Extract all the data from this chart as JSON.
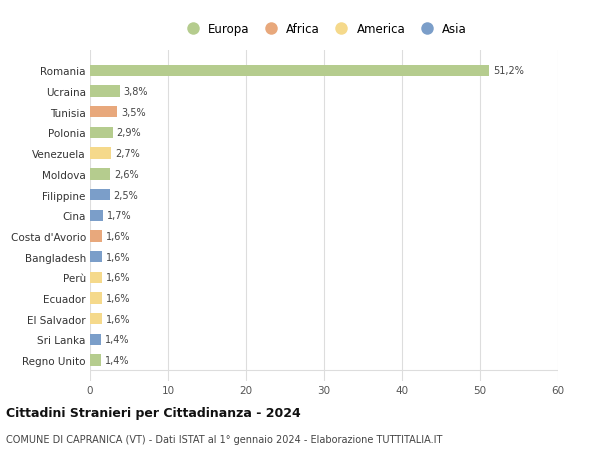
{
  "countries": [
    "Romania",
    "Ucraina",
    "Tunisia",
    "Polonia",
    "Venezuela",
    "Moldova",
    "Filippine",
    "Cina",
    "Costa d'Avorio",
    "Bangladesh",
    "Perù",
    "Ecuador",
    "El Salvador",
    "Sri Lanka",
    "Regno Unito"
  ],
  "values": [
    51.2,
    3.8,
    3.5,
    2.9,
    2.7,
    2.6,
    2.5,
    1.7,
    1.6,
    1.6,
    1.6,
    1.6,
    1.6,
    1.4,
    1.4
  ],
  "labels": [
    "51,2%",
    "3,8%",
    "3,5%",
    "2,9%",
    "2,7%",
    "2,6%",
    "2,5%",
    "1,7%",
    "1,6%",
    "1,6%",
    "1,6%",
    "1,6%",
    "1,6%",
    "1,4%",
    "1,4%"
  ],
  "continent": [
    "Europa",
    "Europa",
    "Africa",
    "Europa",
    "America",
    "Europa",
    "Asia",
    "Asia",
    "Africa",
    "Asia",
    "America",
    "America",
    "America",
    "Asia",
    "Europa"
  ],
  "colors": {
    "Europa": "#b5cc8e",
    "Africa": "#e8a87c",
    "America": "#f5d98b",
    "Asia": "#7b9ec9"
  },
  "xlim": [
    0,
    60
  ],
  "xticks": [
    0,
    10,
    20,
    30,
    40,
    50,
    60
  ],
  "title": "Cittadini Stranieri per Cittadinanza - 2024",
  "subtitle": "COMUNE DI CAPRANICA (VT) - Dati ISTAT al 1° gennaio 2024 - Elaborazione TUTTITALIA.IT",
  "background_color": "#ffffff",
  "grid_color": "#dddddd",
  "bar_height": 0.55,
  "figsize": [
    6.0,
    4.6
  ],
  "dpi": 100
}
